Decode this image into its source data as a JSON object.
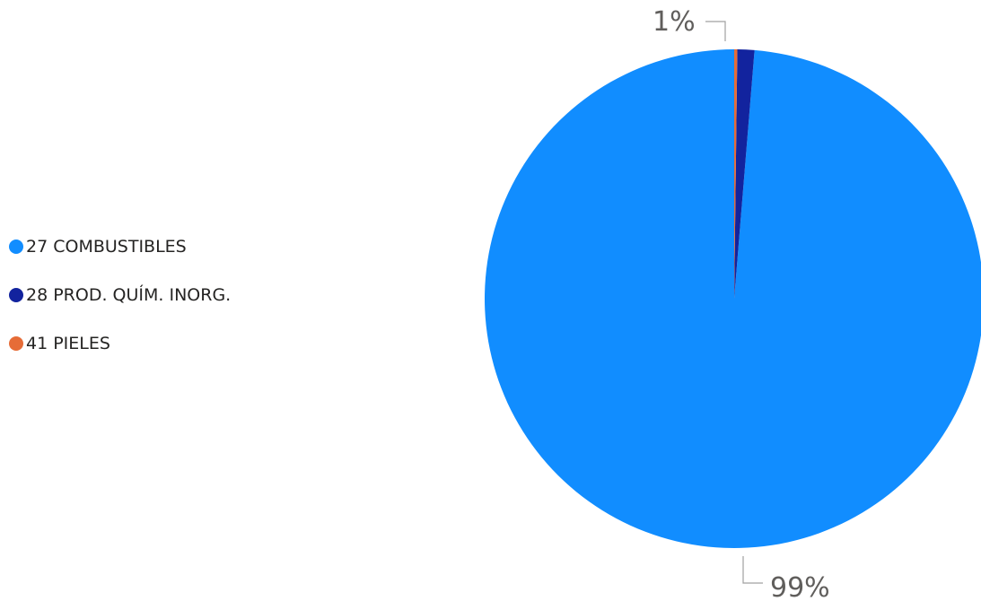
{
  "chart_data": {
    "type": "pie",
    "title": "",
    "series": [
      {
        "name": "27 COMBUSTIBLES",
        "value": 98.7,
        "color": "#118DFF"
      },
      {
        "name": "28 PROD. QUÍM. INORG.",
        "value": 1.1,
        "color": "#12239E"
      },
      {
        "name": "41 PIELES",
        "value": 0.2,
        "color": "#E66C37"
      }
    ],
    "data_labels": [
      "99%",
      "1%"
    ],
    "legend": "left"
  }
}
